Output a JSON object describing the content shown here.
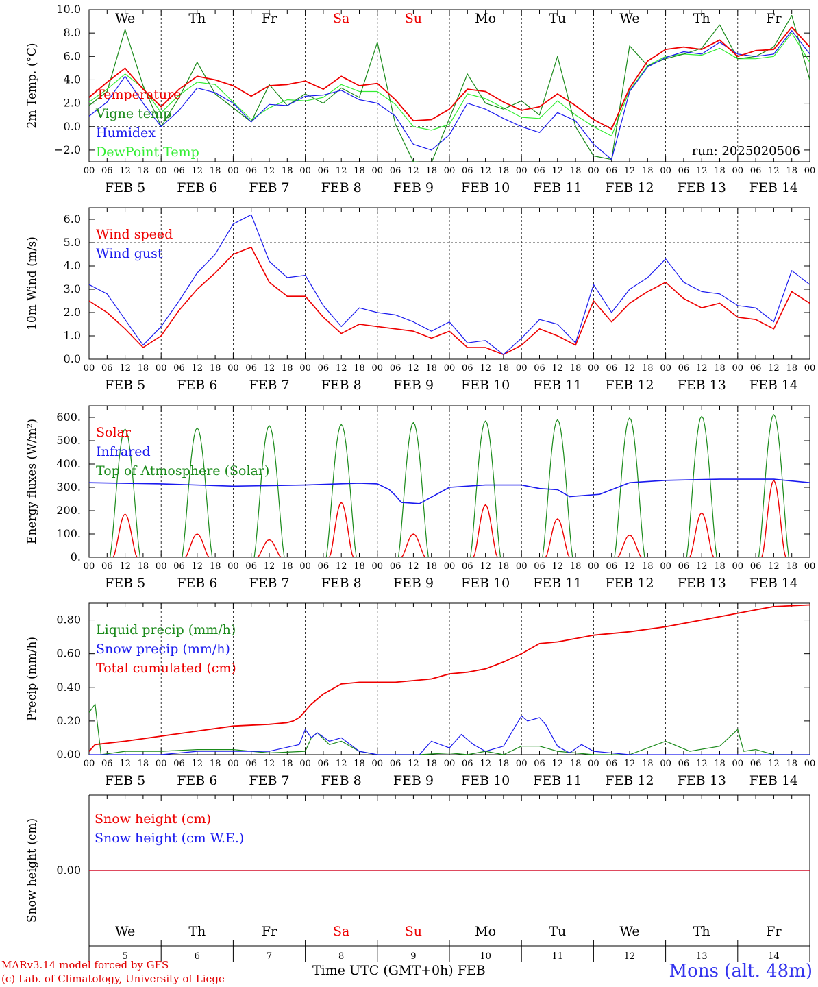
{
  "colors": {
    "red": "#ee0000",
    "green": "#1a8a1a",
    "blue": "#1a1aee",
    "light_green": "#33ee33",
    "axis": "#000000",
    "weekend": "#ee0000"
  },
  "days": {
    "weekday_labels": [
      "We",
      "Th",
      "Fr",
      "Sa",
      "Su",
      "Mo",
      "Tu",
      "We",
      "Th",
      "Fr"
    ],
    "weekend_flags": [
      false,
      false,
      false,
      true,
      true,
      false,
      false,
      false,
      false,
      false
    ],
    "date_labels": [
      "FEB  5",
      "FEB  6",
      "FEB  7",
      "FEB  8",
      "FEB  9",
      "FEB 10",
      "FEB 11",
      "FEB 12",
      "FEB 13",
      "FEB 14"
    ],
    "day_numbers": [
      "5",
      "6",
      "7",
      "8",
      "9",
      "10",
      "11",
      "12",
      "13",
      "14"
    ],
    "hour_ticks": [
      "00",
      "06",
      "12",
      "18"
    ]
  },
  "footer": {
    "credit_line1": "MARv3.14 model forced by GFS",
    "credit_line2": "(c) Lab. of Climatology, University of Liege",
    "xlabel": "Time UTC (GMT+0h)",
    "month": "FEB",
    "station": "Mons (alt. 48m)"
  },
  "chart_data": [
    {
      "type": "line",
      "ylabel": "2m Temp. (°C)",
      "ylim": [
        -3,
        10
      ],
      "yticks": [
        -2,
        0,
        2,
        4,
        6,
        8,
        10
      ],
      "ytick_labels": [
        "−2.0",
        "0.0",
        "2.0",
        "4.0",
        "6.0",
        "8.0",
        "10.0"
      ],
      "dashed_y": [
        0
      ],
      "annotation": "run: 2025020506",
      "legend_position": "top-left",
      "x_unit": "hours since FEB 5 00 UTC",
      "series": [
        {
          "name": "Temperature",
          "color": "#ee0000",
          "x": [
            0,
            6,
            12,
            18,
            24,
            30,
            36,
            42,
            48,
            54,
            60,
            66,
            72,
            78,
            84,
            90,
            96,
            102,
            108,
            114,
            120,
            126,
            132,
            138,
            144,
            150,
            156,
            162,
            168,
            174,
            180,
            186,
            192,
            198,
            204,
            210,
            216,
            222,
            228,
            234,
            240
          ],
          "y": [
            2.5,
            3.8,
            5.0,
            3.2,
            1.7,
            3.2,
            4.3,
            4.0,
            3.5,
            2.6,
            3.5,
            3.6,
            3.9,
            3.2,
            4.3,
            3.5,
            3.7,
            2.3,
            0.5,
            0.6,
            1.5,
            3.2,
            3.0,
            2.1,
            1.4,
            1.7,
            2.8,
            1.8,
            0.6,
            -0.2,
            3.3,
            5.6,
            6.6,
            6.8,
            6.6,
            7.4,
            6.0,
            6.5,
            6.6,
            8.5,
            6.8
          ]
        },
        {
          "name": "Vigne temp",
          "color": "#1a8a1a",
          "x": [
            0,
            6,
            12,
            18,
            24,
            30,
            36,
            42,
            48,
            54,
            60,
            66,
            72,
            78,
            84,
            90,
            96,
            102,
            108,
            114,
            120,
            126,
            132,
            138,
            144,
            150,
            156,
            162,
            168,
            174,
            180,
            186,
            192,
            198,
            204,
            210,
            216,
            222,
            228,
            234,
            240
          ],
          "y": [
            1.8,
            3.0,
            8.3,
            3.5,
            0.0,
            2.5,
            5.5,
            2.8,
            1.6,
            0.4,
            3.6,
            1.8,
            2.8,
            2.0,
            3.3,
            2.5,
            7.2,
            0.2,
            -3.0,
            -3.1,
            0.7,
            4.5,
            2.0,
            1.5,
            2.2,
            1.0,
            6.0,
            0.0,
            -2.5,
            -2.8,
            6.9,
            5.2,
            5.8,
            6.2,
            6.7,
            8.7,
            5.8,
            6.0,
            6.8,
            9.5,
            4.0
          ]
        },
        {
          "name": "Humidex",
          "color": "#1a1aee",
          "x": [
            0,
            6,
            12,
            18,
            24,
            30,
            36,
            42,
            48,
            54,
            60,
            66,
            72,
            78,
            84,
            90,
            96,
            102,
            108,
            114,
            120,
            126,
            132,
            138,
            144,
            150,
            156,
            162,
            168,
            174,
            180,
            186,
            192,
            198,
            204,
            210,
            216,
            222,
            228,
            234,
            240
          ],
          "y": [
            0.9,
            2.1,
            4.3,
            2.0,
            0.0,
            1.4,
            3.3,
            2.9,
            2.0,
            0.4,
            1.9,
            1.8,
            2.6,
            2.7,
            3.1,
            2.3,
            2.0,
            0.9,
            -1.5,
            -2.0,
            -0.7,
            2.0,
            1.5,
            0.7,
            0.0,
            -0.5,
            1.2,
            0.5,
            -1.5,
            -2.8,
            3.0,
            5.1,
            5.9,
            6.4,
            6.2,
            7.2,
            6.2,
            6.0,
            6.2,
            8.2,
            6.2
          ]
        },
        {
          "name": "DewPoint Temp",
          "color": "#33ee33",
          "x": [
            0,
            6,
            12,
            18,
            24,
            30,
            36,
            42,
            48,
            54,
            60,
            66,
            72,
            78,
            84,
            90,
            96,
            102,
            108,
            114,
            120,
            126,
            132,
            138,
            144,
            150,
            156,
            162,
            168,
            174,
            180,
            186,
            192,
            198,
            204,
            210,
            216,
            222,
            228,
            234,
            240
          ],
          "y": [
            2.1,
            3.2,
            4.5,
            3.3,
            1.2,
            2.7,
            3.8,
            3.6,
            2.1,
            0.6,
            1.6,
            2.3,
            2.2,
            2.5,
            3.6,
            3.0,
            3.0,
            1.9,
            0.0,
            -0.3,
            0.2,
            2.8,
            2.4,
            1.6,
            0.8,
            0.7,
            2.2,
            1.0,
            0.0,
            -0.8,
            3.1,
            5.2,
            6.0,
            6.2,
            6.1,
            6.7,
            5.8,
            5.8,
            6.0,
            8.0,
            5.5
          ]
        }
      ]
    },
    {
      "type": "line",
      "ylabel": "10m Wind (m/s)",
      "ylim": [
        0,
        6.5
      ],
      "yticks": [
        0,
        1,
        2,
        3,
        4,
        5,
        6
      ],
      "ytick_labels": [
        "0.0",
        "1.0",
        "2.0",
        "3.0",
        "4.0",
        "5.0",
        "6.0"
      ],
      "dashed_y": [
        5
      ],
      "legend_position": "top-left",
      "series": [
        {
          "name": "Wind speed",
          "color": "#ee0000",
          "x": [
            0,
            6,
            12,
            18,
            24,
            30,
            36,
            42,
            48,
            54,
            60,
            66,
            72,
            78,
            84,
            90,
            96,
            102,
            108,
            114,
            120,
            126,
            132,
            138,
            144,
            150,
            156,
            162,
            168,
            174,
            180,
            186,
            192,
            198,
            204,
            210,
            216,
            222,
            228,
            234,
            240
          ],
          "y": [
            2.5,
            2.0,
            1.3,
            0.5,
            1.0,
            2.1,
            3.0,
            3.7,
            4.5,
            4.8,
            3.3,
            2.7,
            2.7,
            1.8,
            1.1,
            1.5,
            1.4,
            1.3,
            1.2,
            0.9,
            1.2,
            0.5,
            0.5,
            0.2,
            0.6,
            1.3,
            1.0,
            0.6,
            2.5,
            1.6,
            2.4,
            2.9,
            3.3,
            2.6,
            2.2,
            2.4,
            1.8,
            1.7,
            1.3,
            2.9,
            2.4
          ]
        },
        {
          "name": "Wind gust",
          "color": "#1a1aee",
          "x": [
            0,
            6,
            12,
            18,
            24,
            30,
            36,
            42,
            48,
            54,
            60,
            66,
            72,
            78,
            84,
            90,
            96,
            102,
            108,
            114,
            120,
            126,
            132,
            138,
            144,
            150,
            156,
            162,
            168,
            174,
            180,
            186,
            192,
            198,
            204,
            210,
            216,
            222,
            228,
            234,
            240
          ],
          "y": [
            3.2,
            2.8,
            1.7,
            0.6,
            1.4,
            2.5,
            3.7,
            4.5,
            5.8,
            6.2,
            4.2,
            3.5,
            3.6,
            2.3,
            1.4,
            2.2,
            2.0,
            1.9,
            1.6,
            1.2,
            1.6,
            0.7,
            0.8,
            0.2,
            0.9,
            1.7,
            1.5,
            0.7,
            3.2,
            2.0,
            3.0,
            3.5,
            4.3,
            3.3,
            2.9,
            2.8,
            2.3,
            2.2,
            1.6,
            3.8,
            3.2
          ]
        }
      ]
    },
    {
      "type": "line",
      "ylabel": "Energy fluxes (W/m²)",
      "ylim": [
        0,
        650
      ],
      "yticks": [
        0,
        100,
        200,
        300,
        400,
        500,
        600
      ],
      "ytick_labels": [
        "0.",
        "100.",
        "200.",
        "300.",
        "400.",
        "500.",
        "600."
      ],
      "legend_position": "top-left",
      "solar_peaks": [
        185,
        100,
        75,
        235,
        100,
        225,
        165,
        95,
        190,
        330
      ],
      "toa_peaks": [
        550,
        555,
        565,
        570,
        578,
        585,
        590,
        598,
        605,
        612
      ],
      "infrared_curve": {
        "x": [
          0,
          24,
          48,
          72,
          90,
          96,
          100,
          102,
          104,
          110,
          120,
          132,
          144,
          150,
          156,
          160,
          170,
          180,
          192,
          210,
          228,
          240
        ],
        "y": [
          320,
          315,
          305,
          310,
          318,
          315,
          290,
          265,
          235,
          230,
          300,
          310,
          310,
          295,
          290,
          260,
          270,
          320,
          330,
          335,
          335,
          320
        ]
      },
      "series": [
        {
          "name": "Solar",
          "color": "#ee0000"
        },
        {
          "name": "Infrared",
          "color": "#1a1aee"
        },
        {
          "name": "Top of Atmosphere (Solar)",
          "color": "#1a8a1a"
        }
      ]
    },
    {
      "type": "line",
      "ylabel": "Precip (mm/h)",
      "ylim": [
        0,
        0.9
      ],
      "yticks": [
        0,
        0.2,
        0.4,
        0.6,
        0.8
      ],
      "ytick_labels": [
        "0.00",
        "0.20",
        "0.40",
        "0.60",
        "0.80"
      ],
      "legend_position": "top-left",
      "series": [
        {
          "name": "Liquid precip (mm/h)",
          "color": "#1a8a1a",
          "x": [
            0,
            2,
            4,
            12,
            24,
            36,
            48,
            60,
            72,
            74,
            76,
            80,
            84,
            90,
            96,
            110,
            120,
            126,
            132,
            138,
            144,
            150,
            156,
            168,
            180,
            192,
            200,
            210,
            216,
            218,
            222,
            228,
            240
          ],
          "y": [
            0.25,
            0.3,
            0.0,
            0.02,
            0.02,
            0.03,
            0.03,
            0.01,
            0.02,
            0.1,
            0.13,
            0.06,
            0.08,
            0.02,
            0.0,
            0.0,
            0.01,
            0.0,
            0.02,
            0.0,
            0.05,
            0.05,
            0.02,
            0.0,
            0.0,
            0.08,
            0.02,
            0.05,
            0.15,
            0.02,
            0.03,
            0.0,
            0.0
          ]
        },
        {
          "name": "Snow precip (mm/h)",
          "color": "#1a1aee",
          "x": [
            0,
            12,
            24,
            36,
            48,
            60,
            70,
            72,
            74,
            76,
            80,
            84,
            90,
            96,
            110,
            114,
            120,
            124,
            128,
            132,
            138,
            144,
            146,
            150,
            152,
            156,
            160,
            164,
            168,
            180,
            200,
            216,
            240
          ],
          "y": [
            0.0,
            0.0,
            0.0,
            0.02,
            0.02,
            0.02,
            0.06,
            0.15,
            0.1,
            0.13,
            0.08,
            0.1,
            0.02,
            0.0,
            0.0,
            0.08,
            0.04,
            0.12,
            0.06,
            0.02,
            0.05,
            0.23,
            0.2,
            0.22,
            0.18,
            0.05,
            0.01,
            0.06,
            0.02,
            0.0,
            0.0,
            0.0,
            0.0
          ]
        },
        {
          "name": "Total cumulated (cm)",
          "color": "#ee0000",
          "x": [
            0,
            2,
            12,
            24,
            36,
            48,
            60,
            66,
            68,
            70,
            72,
            74,
            76,
            78,
            80,
            84,
            90,
            96,
            102,
            108,
            114,
            120,
            126,
            132,
            138,
            144,
            150,
            156,
            168,
            180,
            192,
            204,
            216,
            222,
            228,
            240
          ],
          "y": [
            0.02,
            0.06,
            0.08,
            0.11,
            0.14,
            0.17,
            0.18,
            0.19,
            0.2,
            0.22,
            0.26,
            0.3,
            0.33,
            0.36,
            0.38,
            0.42,
            0.43,
            0.43,
            0.43,
            0.44,
            0.45,
            0.48,
            0.49,
            0.51,
            0.55,
            0.6,
            0.66,
            0.67,
            0.71,
            0.73,
            0.76,
            0.8,
            0.84,
            0.86,
            0.88,
            0.89
          ]
        }
      ]
    },
    {
      "type": "line",
      "ylabel": "Snow height (cm)",
      "yticks": [
        0
      ],
      "ytick_labels": [
        "0.00"
      ],
      "legend_position": "top-left",
      "series": [
        {
          "name": "Snow height (cm)",
          "color": "#ee0000",
          "x": [
            0,
            240
          ],
          "y": [
            0,
            0
          ]
        },
        {
          "name": "Snow height (cm W.E.)",
          "color": "#1a1aee",
          "x": [
            0,
            240
          ],
          "y": [
            0,
            0
          ]
        }
      ]
    }
  ]
}
